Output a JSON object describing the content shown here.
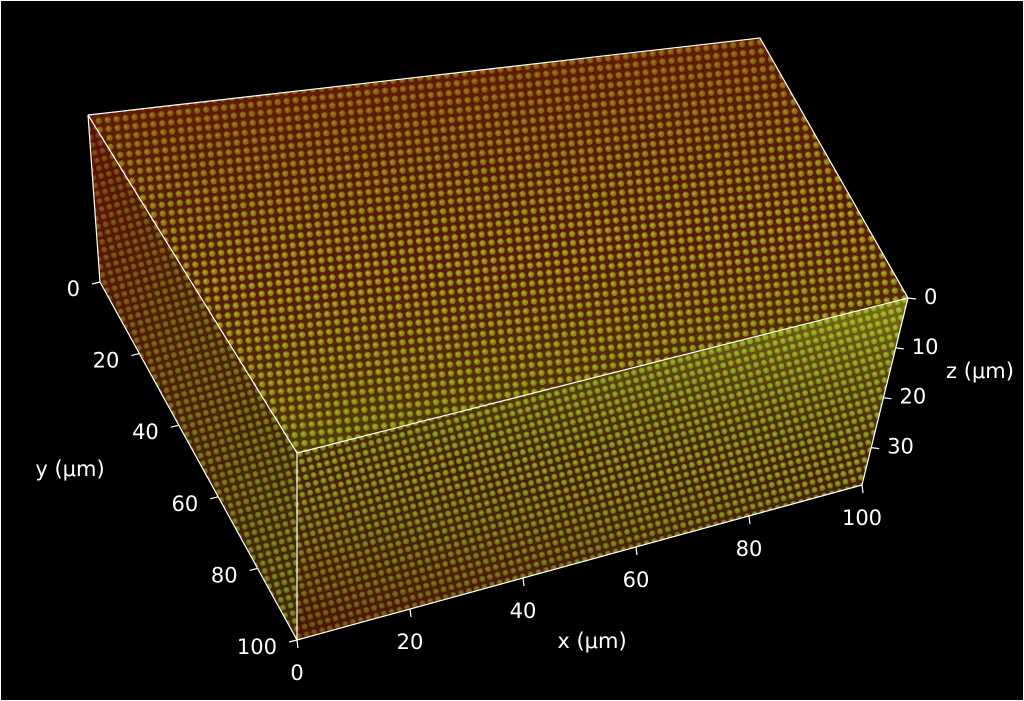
{
  "axes": {
    "x": {
      "label": "x (μm)",
      "ticks": [
        "0",
        "20",
        "40",
        "60",
        "80",
        "100"
      ]
    },
    "y": {
      "label": "y (μm)",
      "ticks": [
        "0",
        "20",
        "40",
        "60",
        "80",
        "100"
      ]
    },
    "z": {
      "label": "z (μm)",
      "ticks": [
        "0",
        "10",
        "20",
        "30"
      ]
    }
  }
}
